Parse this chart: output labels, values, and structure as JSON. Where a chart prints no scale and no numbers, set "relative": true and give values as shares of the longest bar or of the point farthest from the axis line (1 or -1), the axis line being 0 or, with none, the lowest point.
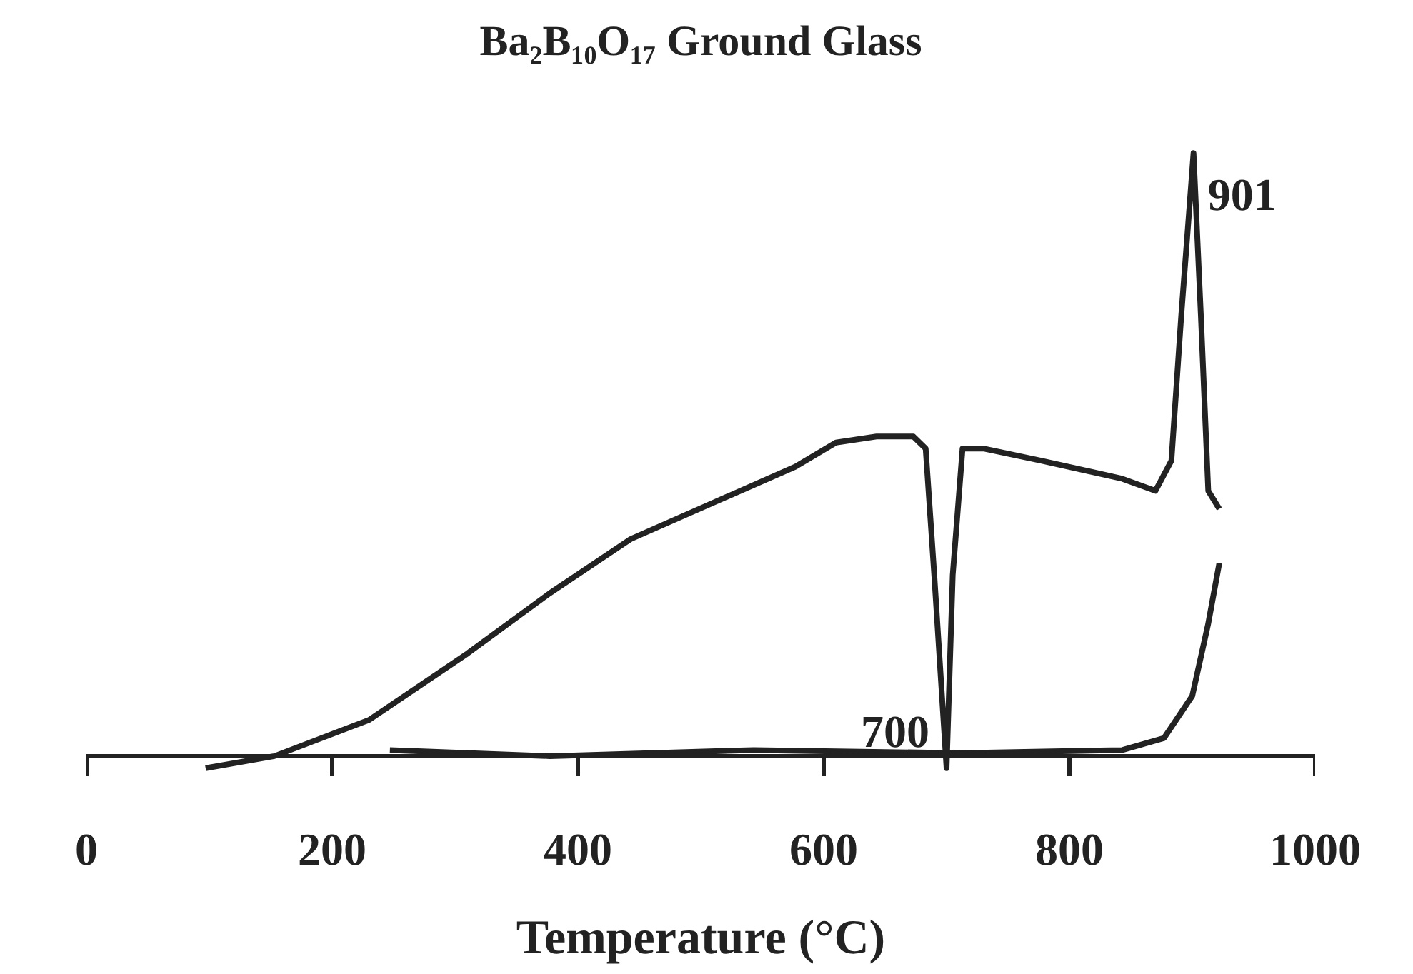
{
  "chart_data": {
    "type": "line",
    "title": "Ba₂B₁₀O₁₇ Ground Glass",
    "xlabel": "Temperature (°C)",
    "relative": true,
    "xlim": [
      0,
      1000
    ],
    "xticks": [
      0,
      200,
      400,
      600,
      800,
      1000
    ],
    "grid": false,
    "series": [
      {
        "color": "#222222",
        "x": [
          97,
          153,
          230,
          310,
          377,
          443,
          510,
          577,
          610,
          643,
          673,
          683,
          690,
          700,
          705,
          713,
          730,
          777,
          843,
          870,
          883,
          891,
          901,
          907,
          913,
          922
        ],
        "values": [
          -0.02,
          0,
          0.06,
          0.17,
          0.27,
          0.36,
          0.42,
          0.48,
          0.52,
          0.53,
          0.53,
          0.51,
          0.3,
          -0.02,
          0.3,
          0.51,
          0.51,
          0.49,
          0.46,
          0.44,
          0.49,
          0.73,
          1.0,
          0.73,
          0.44,
          0.41
        ]
      },
      {
        "color": "#222222",
        "x": [
          247,
          377,
          543,
          710,
          843,
          877,
          900,
          913,
          922
        ],
        "values": [
          0.01,
          0,
          0.01,
          0.005,
          0.01,
          0.03,
          0.1,
          0.22,
          0.32
        ]
      }
    ],
    "annotations": [
      {
        "text": "700",
        "x": 700,
        "y": -0.02
      },
      {
        "text": "901",
        "x": 901,
        "y": 1.0
      }
    ]
  }
}
